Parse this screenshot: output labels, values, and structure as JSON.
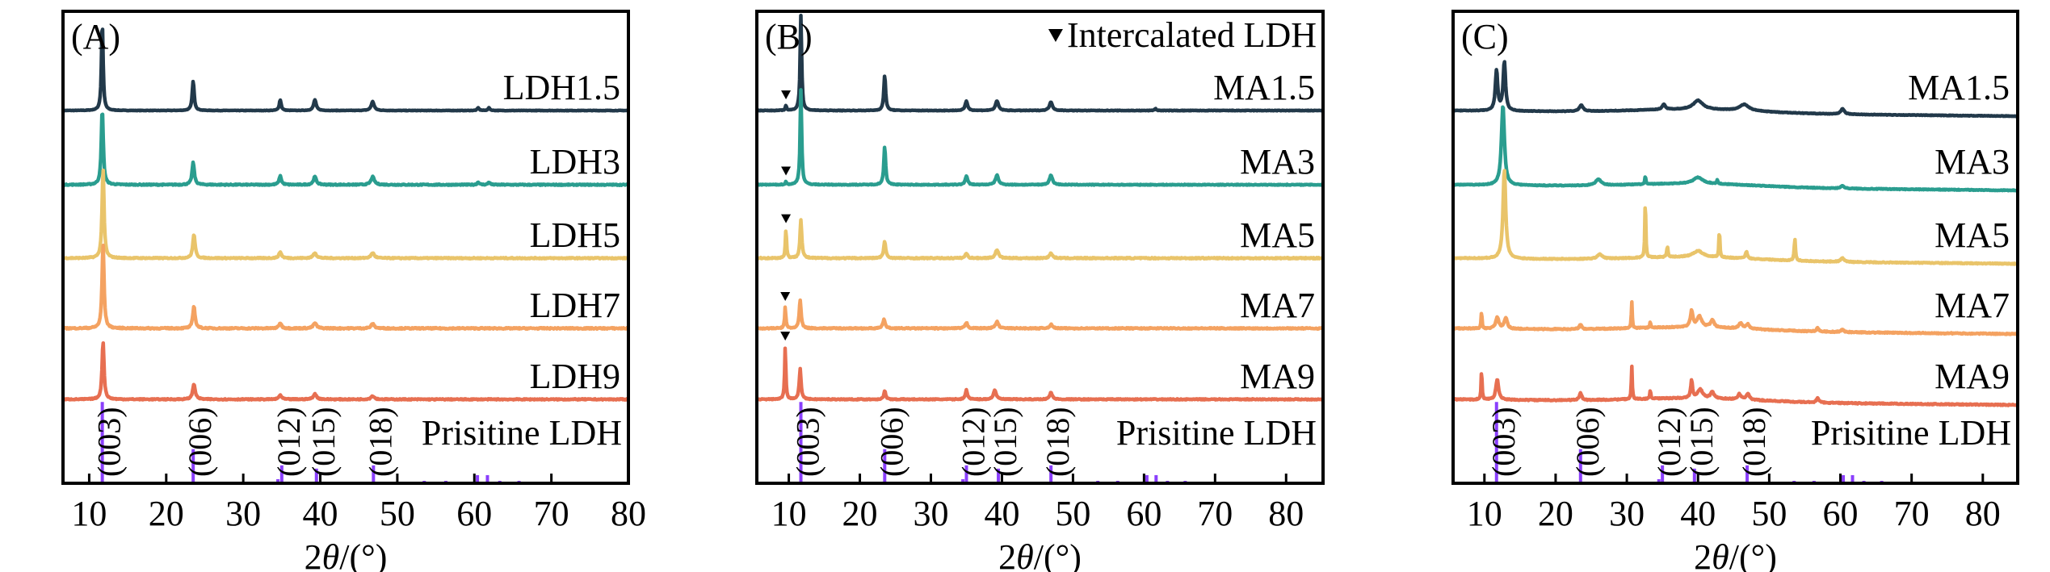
{
  "chart_data": [
    {
      "type": "line",
      "panel": "(A)",
      "xlabel": "2θ/(°)",
      "ylabel": "",
      "xlim": [
        6.6,
        80
      ],
      "xticks": [
        10,
        20,
        30,
        40,
        50,
        60,
        70,
        80
      ],
      "xtick_labels": [
        "10",
        "20",
        "30",
        "40",
        "50",
        "60",
        "70",
        "80"
      ],
      "legend": null,
      "series": [
        {
          "name": "LDH1.5",
          "color": "#22394a",
          "peaks": [
            [
              11.7,
              1.0,
              0.25
            ],
            [
              23.5,
              0.33,
              0.3
            ],
            [
              34.8,
              0.12,
              0.3
            ],
            [
              39.3,
              0.12,
              0.4
            ],
            [
              46.8,
              0.1,
              0.45
            ],
            [
              60.5,
              0.03,
              0.3
            ],
            [
              61.9,
              0.03,
              0.3
            ]
          ],
          "noise": 0.005
        },
        {
          "name": "LDH3",
          "color": "#2a9d8f",
          "peaks": [
            [
              11.7,
              0.85,
              0.3
            ],
            [
              23.5,
              0.25,
              0.35
            ],
            [
              34.8,
              0.1,
              0.35
            ],
            [
              39.3,
              0.09,
              0.45
            ],
            [
              46.8,
              0.09,
              0.5
            ],
            [
              60.5,
              0.03,
              0.3
            ],
            [
              61.9,
              0.03,
              0.3
            ]
          ],
          "noise": 0.012
        },
        {
          "name": "LDH5",
          "color": "#e9c46a",
          "peaks": [
            [
              11.8,
              1.0,
              0.3
            ],
            [
              23.6,
              0.27,
              0.35
            ],
            [
              34.8,
              0.07,
              0.4
            ],
            [
              39.3,
              0.06,
              0.5
            ],
            [
              46.8,
              0.06,
              0.5
            ]
          ],
          "noise": 0.012
        },
        {
          "name": "LDH7",
          "color": "#f4a261",
          "peaks": [
            [
              11.8,
              0.95,
              0.3
            ],
            [
              23.6,
              0.25,
              0.35
            ],
            [
              34.8,
              0.06,
              0.4
            ],
            [
              39.3,
              0.06,
              0.5
            ],
            [
              46.8,
              0.05,
              0.5
            ]
          ],
          "noise": 0.015
        },
        {
          "name": "LDH9",
          "color": "#e76f51",
          "peaks": [
            [
              11.8,
              0.65,
              0.3
            ],
            [
              23.6,
              0.17,
              0.4
            ],
            [
              34.8,
              0.05,
              0.4
            ],
            [
              39.3,
              0.06,
              0.5
            ],
            [
              46.8,
              0.04,
              0.5
            ]
          ],
          "noise": 0.012
        }
      ],
      "reference": {
        "name": "Prisitine LDH",
        "color": "#8a3ffc",
        "bars": [
          [
            11.7,
            1.0
          ],
          [
            23.5,
            0.42
          ],
          [
            34.5,
            0.05
          ],
          [
            35.0,
            0.22
          ],
          [
            39.5,
            0.18
          ],
          [
            46.9,
            0.22
          ],
          [
            53.5,
            0.03
          ],
          [
            56.3,
            0.03
          ],
          [
            60.4,
            0.1
          ],
          [
            61.7,
            0.1
          ],
          [
            63.3,
            0.03
          ],
          [
            65.8,
            0.03
          ]
        ],
        "hkl_labels": [
          {
            "x": 11.7,
            "text": "(003)"
          },
          {
            "x": 23.5,
            "text": "(006)"
          },
          {
            "x": 35.0,
            "text": "(012)"
          },
          {
            "x": 39.5,
            "text": "(015)"
          },
          {
            "x": 46.9,
            "text": "(018)"
          }
        ]
      }
    },
    {
      "type": "line",
      "panel": "(B)",
      "xlabel": "2θ/(°)",
      "ylabel": "",
      "xlim": [
        5.5,
        85.2
      ],
      "xticks": [
        10,
        20,
        30,
        40,
        50,
        60,
        70,
        80
      ],
      "xtick_labels": [
        "10",
        "20",
        "30",
        "40",
        "50",
        "60",
        "70",
        "80"
      ],
      "legend": {
        "symbol": "▼",
        "text": "Intercalated LDH",
        "placement": "top-right"
      },
      "series": [
        {
          "name": "MA1.5",
          "color": "#22394a",
          "marker_x": 9.6,
          "peaks": [
            [
              9.6,
              0.05,
              0.2
            ],
            [
              11.7,
              1.0,
              0.25
            ],
            [
              23.5,
              0.37,
              0.3
            ],
            [
              35.0,
              0.1,
              0.4
            ],
            [
              39.3,
              0.1,
              0.5
            ],
            [
              46.9,
              0.09,
              0.5
            ],
            [
              61.6,
              0.02,
              0.3
            ]
          ],
          "noise": 0.006
        },
        {
          "name": "MA3",
          "color": "#2a9d8f",
          "marker_x": 9.6,
          "peaks": [
            [
              9.6,
              0.03,
              0.2
            ],
            [
              11.7,
              1.0,
              0.25
            ],
            [
              23.5,
              0.4,
              0.3
            ],
            [
              35.0,
              0.09,
              0.4
            ],
            [
              39.3,
              0.1,
              0.5
            ],
            [
              46.9,
              0.1,
              0.5
            ]
          ],
          "noise": 0.008
        },
        {
          "name": "MA5",
          "color": "#e9c46a",
          "marker_x": 9.6,
          "peaks": [
            [
              9.6,
              0.3,
              0.2
            ],
            [
              11.7,
              0.4,
              0.3
            ],
            [
              23.5,
              0.17,
              0.35
            ],
            [
              35.0,
              0.05,
              0.4
            ],
            [
              39.3,
              0.09,
              0.5
            ],
            [
              46.9,
              0.05,
              0.5
            ]
          ],
          "noise": 0.012
        },
        {
          "name": "MA7",
          "color": "#f4a261",
          "marker_x": 9.5,
          "peaks": [
            [
              9.5,
              0.22,
              0.2
            ],
            [
              11.6,
              0.3,
              0.3
            ],
            [
              23.4,
              0.1,
              0.35
            ],
            [
              35.0,
              0.06,
              0.4
            ],
            [
              39.3,
              0.07,
              0.5
            ],
            [
              46.9,
              0.04,
              0.5
            ]
          ],
          "noise": 0.012
        },
        {
          "name": "MA9",
          "color": "#e76f51",
          "marker_x": 9.5,
          "peaks": [
            [
              9.5,
              0.55,
              0.2
            ],
            [
              11.6,
              0.32,
              0.3
            ],
            [
              23.5,
              0.09,
              0.3
            ],
            [
              35.0,
              0.1,
              0.35
            ],
            [
              39.0,
              0.1,
              0.45
            ],
            [
              46.9,
              0.07,
              0.45
            ]
          ],
          "noise": 0.01
        }
      ],
      "reference": {
        "name": "Prisitine LDH",
        "color": "#8a3ffc",
        "bars": [
          [
            11.7,
            1.0
          ],
          [
            23.5,
            0.42
          ],
          [
            34.5,
            0.05
          ],
          [
            35.0,
            0.22
          ],
          [
            39.5,
            0.18
          ],
          [
            46.9,
            0.22
          ],
          [
            53.5,
            0.03
          ],
          [
            56.3,
            0.03
          ],
          [
            60.4,
            0.1
          ],
          [
            61.7,
            0.1
          ],
          [
            63.3,
            0.03
          ],
          [
            65.8,
            0.03
          ]
        ],
        "hkl_labels": [
          {
            "x": 11.7,
            "text": "(003)"
          },
          {
            "x": 23.5,
            "text": "(006)"
          },
          {
            "x": 35.0,
            "text": "(012)"
          },
          {
            "x": 39.5,
            "text": "(015)"
          },
          {
            "x": 46.9,
            "text": "(018)"
          }
        ]
      }
    },
    {
      "type": "line",
      "panel": "(C)",
      "xlabel": "2θ/(°)",
      "ylabel": "",
      "xlim": [
        5.6,
        84.9
      ],
      "xticks": [
        10,
        20,
        30,
        40,
        50,
        60,
        70,
        80
      ],
      "xtick_labels": [
        "10",
        "20",
        "30",
        "40",
        "50",
        "60",
        "70",
        "80"
      ],
      "legend": null,
      "series": [
        {
          "name": "MA1.5",
          "color": "#22394a",
          "peaks": [
            [
              11.7,
              0.45,
              0.4
            ],
            [
              12.8,
              0.55,
              0.4
            ],
            [
              23.6,
              0.07,
              0.6
            ],
            [
              35.2,
              0.06,
              0.5
            ],
            [
              40.0,
              0.1,
              1.6
            ],
            [
              46.5,
              0.07,
              1.6
            ],
            [
              60.3,
              0.06,
              0.6
            ]
          ],
          "noise": 0.006
        },
        {
          "name": "MA3",
          "color": "#2a9d8f",
          "peaks": [
            [
              12.6,
              0.9,
              0.5
            ],
            [
              26.0,
              0.07,
              0.9
            ],
            [
              32.6,
              0.1,
              0.15
            ],
            [
              40.0,
              0.07,
              1.6
            ],
            [
              42.7,
              0.04,
              0.2
            ],
            [
              60.3,
              0.03,
              0.6
            ]
          ],
          "noise": 0.008
        },
        {
          "name": "MA5",
          "color": "#e9c46a",
          "peaks": [
            [
              12.8,
              1.0,
              0.45
            ],
            [
              26.2,
              0.05,
              0.8
            ],
            [
              32.6,
              0.7,
              0.15
            ],
            [
              35.7,
              0.12,
              0.2
            ],
            [
              40.0,
              0.07,
              1.6
            ],
            [
              43.0,
              0.33,
              0.15
            ],
            [
              46.8,
              0.08,
              0.3
            ],
            [
              53.6,
              0.25,
              0.2
            ],
            [
              60.3,
              0.04,
              0.6
            ]
          ],
          "noise": 0.01
        },
        {
          "name": "MA7",
          "color": "#f4a261",
          "peaks": [
            [
              9.6,
              0.2,
              0.15
            ],
            [
              11.8,
              0.13,
              0.5
            ],
            [
              13.0,
              0.12,
              0.5
            ],
            [
              23.5,
              0.05,
              0.4
            ],
            [
              30.7,
              0.3,
              0.15
            ],
            [
              33.3,
              0.07,
              0.15
            ],
            [
              39.1,
              0.18,
              0.4
            ],
            [
              40.2,
              0.12,
              0.8
            ],
            [
              42.0,
              0.08,
              0.6
            ],
            [
              46.0,
              0.06,
              0.6
            ],
            [
              47.0,
              0.05,
              0.5
            ],
            [
              56.8,
              0.04,
              0.4
            ],
            [
              60.3,
              0.03,
              0.4
            ]
          ],
          "noise": 0.012
        },
        {
          "name": "MA9",
          "color": "#e76f51",
          "peaks": [
            [
              9.6,
              0.35,
              0.15
            ],
            [
              11.8,
              0.23,
              0.45
            ],
            [
              23.5,
              0.08,
              0.4
            ],
            [
              30.7,
              0.38,
              0.15
            ],
            [
              33.3,
              0.1,
              0.15
            ],
            [
              39.1,
              0.2,
              0.3
            ],
            [
              40.3,
              0.1,
              0.8
            ],
            [
              42.0,
              0.07,
              0.6
            ],
            [
              45.8,
              0.06,
              0.5
            ],
            [
              47.0,
              0.07,
              0.5
            ],
            [
              56.8,
              0.05,
              0.4
            ]
          ],
          "noise": 0.012
        }
      ],
      "reference": {
        "name": "Prisitine LDH",
        "color": "#8a3ffc",
        "bars": [
          [
            11.7,
            1.0
          ],
          [
            23.5,
            0.42
          ],
          [
            34.5,
            0.05
          ],
          [
            35.0,
            0.22
          ],
          [
            39.5,
            0.18
          ],
          [
            46.9,
            0.22
          ],
          [
            53.5,
            0.03
          ],
          [
            56.3,
            0.03
          ],
          [
            60.4,
            0.1
          ],
          [
            61.7,
            0.1
          ],
          [
            63.3,
            0.03
          ],
          [
            65.8,
            0.03
          ]
        ],
        "hkl_labels": [
          {
            "x": 11.7,
            "text": "(003)"
          },
          {
            "x": 23.5,
            "text": "(006)"
          },
          {
            "x": 35.0,
            "text": "(012)"
          },
          {
            "x": 39.5,
            "text": "(015)"
          },
          {
            "x": 46.9,
            "text": "(018)"
          }
        ]
      }
    }
  ]
}
